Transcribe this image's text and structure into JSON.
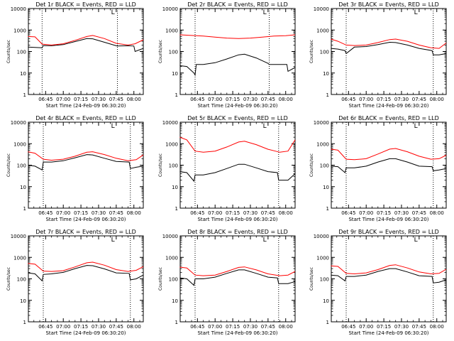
{
  "colors": {
    "background": "#ffffff",
    "events": "#000000",
    "lld": "#ff0000",
    "axis": "#000000"
  },
  "shared": {
    "ylabel": "Counts/sec",
    "xlabel": "Start Time (24-Feb-09 06:30:20)",
    "xticks": [
      "06:45",
      "07:00",
      "07:15",
      "07:30",
      "07:45",
      "08:00"
    ],
    "yticks": [
      "1",
      "10",
      "100",
      "1000",
      "10000"
    ],
    "marker": "L"
  },
  "chart_data": [
    {
      "type": "line",
      "title": "Det 1r BLACK = Events, RED = LLD",
      "xlabel": "Start Time (24-Feb-09 06:30:20)",
      "ylabel": "Counts/sec",
      "y_scale": "log",
      "ylim": [
        1,
        10000
      ],
      "xlim": [
        "06:30:20",
        "08:08"
      ],
      "dotted_vlines": [
        "06:42",
        "07:46"
      ],
      "series": [
        {
          "name": "Events",
          "color": "#000000",
          "x": [
            "06:30",
            "06:36",
            "06:42",
            "06:43",
            "06:50",
            "07:00",
            "07:10",
            "07:20",
            "07:25",
            "07:35",
            "07:45",
            "07:46",
            "07:55",
            "08:00",
            "08:01",
            "08:08"
          ],
          "y": [
            160,
            155,
            150,
            190,
            185,
            210,
            290,
            400,
            390,
            270,
            185,
            180,
            185,
            180,
            100,
            140
          ]
        },
        {
          "name": "LLD",
          "color": "#ff0000",
          "x": [
            "06:30",
            "06:36",
            "06:42",
            "06:50",
            "07:00",
            "07:10",
            "07:20",
            "07:25",
            "07:35",
            "07:45",
            "07:55",
            "08:01",
            "08:08"
          ],
          "y": [
            500,
            480,
            220,
            200,
            230,
            330,
            500,
            560,
            400,
            240,
            200,
            230,
            350
          ]
        }
      ]
    },
    {
      "type": "line",
      "title": "Det 2r BLACK = Events, RED = LLD",
      "xlabel": "Start Time (24-Feb-09 06:30:20)",
      "ylabel": "Counts/sec",
      "y_scale": "log",
      "ylim": [
        1,
        10000
      ],
      "xlim": [
        "06:30:20",
        "08:08"
      ],
      "dotted_vlines": [
        "06:43",
        "07:46"
      ],
      "series": [
        {
          "name": "Events",
          "color": "#000000",
          "x": [
            "06:30",
            "06:36",
            "06:42",
            "06:43",
            "06:44",
            "06:50",
            "07:00",
            "07:10",
            "07:20",
            "07:25",
            "07:35",
            "07:45",
            "07:46",
            "07:55",
            "08:01",
            "08:02",
            "08:08"
          ],
          "y": [
            22,
            20,
            10,
            8,
            25,
            25,
            30,
            45,
            70,
            75,
            50,
            28,
            25,
            25,
            25,
            12,
            18
          ]
        },
        {
          "name": "LLD",
          "color": "#ff0000",
          "x": [
            "06:30",
            "06:40",
            "06:50",
            "07:00",
            "07:10",
            "07:20",
            "07:30",
            "07:40",
            "07:50",
            "08:00",
            "08:08"
          ],
          "y": [
            600,
            560,
            520,
            470,
            420,
            400,
            420,
            470,
            520,
            540,
            600
          ]
        }
      ]
    },
    {
      "type": "line",
      "title": "Det 3r BLACK = Events, RED = LLD",
      "xlabel": "Start Time (24-Feb-09 06:30:20)",
      "ylabel": "Counts/sec",
      "y_scale": "log",
      "ylim": [
        1,
        10000
      ],
      "xlim": [
        "06:30:20",
        "08:08"
      ],
      "dotted_vlines": [
        "06:43",
        "07:57"
      ],
      "series": [
        {
          "name": "Events",
          "color": "#000000",
          "x": [
            "06:30",
            "06:36",
            "06:42",
            "06:43",
            "06:50",
            "07:00",
            "07:10",
            "07:20",
            "07:25",
            "07:35",
            "07:45",
            "07:56",
            "07:57",
            "08:02",
            "08:08"
          ],
          "y": [
            140,
            130,
            110,
            80,
            160,
            170,
            210,
            270,
            260,
            200,
            140,
            110,
            70,
            70,
            80
          ]
        },
        {
          "name": "LLD",
          "color": "#ff0000",
          "x": [
            "06:30",
            "06:36",
            "06:43",
            "06:50",
            "07:00",
            "07:10",
            "07:20",
            "07:25",
            "07:35",
            "07:45",
            "07:55",
            "08:02",
            "08:08"
          ],
          "y": [
            380,
            300,
            200,
            190,
            200,
            260,
            360,
            380,
            300,
            200,
            150,
            140,
            250
          ]
        }
      ]
    },
    {
      "type": "line",
      "title": "Det 4r BLACK = Events, RED = LLD",
      "xlabel": "Start Time (24-Feb-09 06:30:20)",
      "ylabel": "Counts/sec",
      "y_scale": "log",
      "ylim": [
        1,
        10000
      ],
      "xlim": [
        "06:30:20",
        "08:08"
      ],
      "dotted_vlines": [
        "06:43",
        "07:57"
      ],
      "series": [
        {
          "name": "Events",
          "color": "#000000",
          "x": [
            "06:30",
            "06:36",
            "06:42",
            "06:43",
            "06:50",
            "07:00",
            "07:10",
            "07:20",
            "07:25",
            "07:35",
            "07:45",
            "07:56",
            "07:57",
            "08:02",
            "08:08"
          ],
          "y": [
            100,
            90,
            60,
            140,
            140,
            160,
            220,
            310,
            300,
            210,
            150,
            140,
            70,
            80,
            90
          ]
        },
        {
          "name": "LLD",
          "color": "#ff0000",
          "x": [
            "06:30",
            "06:36",
            "06:43",
            "06:50",
            "07:00",
            "07:10",
            "07:20",
            "07:25",
            "07:35",
            "07:45",
            "07:55",
            "08:02",
            "08:08"
          ],
          "y": [
            420,
            360,
            190,
            170,
            190,
            260,
            400,
            420,
            310,
            210,
            160,
            180,
            300
          ]
        }
      ]
    },
    {
      "type": "line",
      "title": "Det 5r BLACK = Events, RED = LLD",
      "xlabel": "Start Time (24-Feb-09 06:30:20)",
      "ylabel": "Counts/sec",
      "y_scale": "log",
      "ylim": [
        1,
        10000
      ],
      "xlim": [
        "06:30:20",
        "08:08"
      ],
      "dotted_vlines": [
        "06:43",
        "07:54"
      ],
      "series": [
        {
          "name": "Events",
          "color": "#000000",
          "x": [
            "06:30",
            "06:36",
            "06:42",
            "06:43",
            "06:50",
            "07:00",
            "07:10",
            "07:20",
            "07:25",
            "07:35",
            "07:45",
            "07:53",
            "07:54",
            "08:02",
            "08:08"
          ],
          "y": [
            50,
            45,
            18,
            35,
            35,
            45,
            70,
            110,
            110,
            75,
            50,
            45,
            20,
            20,
            40
          ]
        },
        {
          "name": "LLD",
          "color": "#ff0000",
          "x": [
            "06:30",
            "06:36",
            "06:43",
            "06:50",
            "07:00",
            "07:10",
            "07:20",
            "07:25",
            "07:35",
            "07:45",
            "07:55",
            "08:02",
            "08:08"
          ],
          "y": [
            2000,
            1500,
            450,
            400,
            450,
            700,
            1200,
            1300,
            900,
            550,
            400,
            450,
            1500
          ]
        }
      ]
    },
    {
      "type": "line",
      "title": "Det 6r BLACK = Events, RED = LLD",
      "xlabel": "Start Time (24-Feb-09 06:30:20)",
      "ylabel": "Counts/sec",
      "y_scale": "log",
      "ylim": [
        1,
        10000
      ],
      "xlim": [
        "06:30:20",
        "08:08"
      ],
      "dotted_vlines": [
        "06:43",
        "07:57"
      ],
      "series": [
        {
          "name": "Events",
          "color": "#000000",
          "x": [
            "06:30",
            "06:36",
            "06:42",
            "06:43",
            "06:50",
            "07:00",
            "07:10",
            "07:20",
            "07:25",
            "07:35",
            "07:45",
            "07:56",
            "07:57",
            "08:02",
            "08:08"
          ],
          "y": [
            90,
            85,
            45,
            75,
            75,
            90,
            140,
            200,
            200,
            140,
            90,
            85,
            55,
            60,
            70
          ]
        },
        {
          "name": "LLD",
          "color": "#ff0000",
          "x": [
            "06:30",
            "06:36",
            "06:43",
            "06:50",
            "07:00",
            "07:10",
            "07:20",
            "07:25",
            "07:35",
            "07:45",
            "07:55",
            "08:02",
            "08:08"
          ],
          "y": [
            560,
            500,
            190,
            180,
            200,
            330,
            560,
            600,
            420,
            260,
            190,
            200,
            290
          ]
        }
      ]
    },
    {
      "type": "line",
      "title": "Det 7r BLACK = Events, RED = LLD",
      "xlabel": "Start Time (24-Feb-09 06:30:20)",
      "ylabel": "Counts/sec",
      "y_scale": "log",
      "ylim": [
        1,
        10000
      ],
      "xlim": [
        "06:30:20",
        "08:08"
      ],
      "dotted_vlines": [
        "06:43",
        "07:57"
      ],
      "series": [
        {
          "name": "Events",
          "color": "#000000",
          "x": [
            "06:30",
            "06:36",
            "06:42",
            "06:43",
            "06:50",
            "07:00",
            "07:10",
            "07:20",
            "07:25",
            "07:35",
            "07:45",
            "07:56",
            "07:57",
            "08:02",
            "08:08"
          ],
          "y": [
            190,
            170,
            80,
            160,
            170,
            200,
            300,
            420,
            410,
            290,
            190,
            180,
            90,
            100,
            150
          ]
        },
        {
          "name": "LLD",
          "color": "#ff0000",
          "x": [
            "06:30",
            "06:36",
            "06:43",
            "06:50",
            "07:00",
            "07:10",
            "07:20",
            "07:25",
            "07:35",
            "07:45",
            "07:55",
            "08:02",
            "08:08"
          ],
          "y": [
            520,
            480,
            230,
            220,
            240,
            360,
            560,
            600,
            430,
            270,
            220,
            250,
            370
          ]
        }
      ]
    },
    {
      "type": "line",
      "title": "Det 8r BLACK = Events, RED = LLD",
      "xlabel": "Start Time (24-Feb-09 06:30:20)",
      "ylabel": "Counts/sec",
      "y_scale": "log",
      "ylim": [
        1,
        10000
      ],
      "xlim": [
        "06:30:20",
        "08:08"
      ],
      "dotted_vlines": [
        "06:43",
        "07:54"
      ],
      "series": [
        {
          "name": "Events",
          "color": "#000000",
          "x": [
            "06:30",
            "06:36",
            "06:42",
            "06:43",
            "06:50",
            "07:00",
            "07:10",
            "07:20",
            "07:25",
            "07:35",
            "07:45",
            "07:53",
            "07:54",
            "08:02",
            "08:08"
          ],
          "y": [
            110,
            100,
            50,
            100,
            100,
            120,
            180,
            260,
            260,
            180,
            120,
            110,
            60,
            60,
            75
          ]
        },
        {
          "name": "LLD",
          "color": "#ff0000",
          "x": [
            "06:30",
            "06:36",
            "06:43",
            "06:50",
            "07:00",
            "07:10",
            "07:20",
            "07:25",
            "07:35",
            "07:45",
            "07:55",
            "08:02",
            "08:08"
          ],
          "y": [
            350,
            320,
            150,
            140,
            150,
            220,
            340,
            360,
            260,
            170,
            140,
            150,
            220
          ]
        }
      ]
    },
    {
      "type": "line",
      "title": "Det 9r BLACK = Events, RED = LLD",
      "xlabel": "Start Time (24-Feb-09 06:30:20)",
      "ylabel": "Counts/sec",
      "y_scale": "log",
      "ylim": [
        1,
        10000
      ],
      "xlim": [
        "06:30:20",
        "08:08"
      ],
      "dotted_vlines": [
        "06:43",
        "07:57"
      ],
      "series": [
        {
          "name": "Events",
          "color": "#000000",
          "x": [
            "06:30",
            "06:36",
            "06:42",
            "06:43",
            "06:50",
            "07:00",
            "07:10",
            "07:20",
            "07:25",
            "07:35",
            "07:45",
            "07:56",
            "07:57",
            "08:02",
            "08:08"
          ],
          "y": [
            150,
            140,
            80,
            130,
            130,
            150,
            220,
            300,
            300,
            210,
            140,
            130,
            65,
            70,
            90
          ]
        },
        {
          "name": "LLD",
          "color": "#ff0000",
          "x": [
            "06:30",
            "06:36",
            "06:43",
            "06:50",
            "07:00",
            "07:10",
            "07:20",
            "07:25",
            "07:35",
            "07:45",
            "07:55",
            "08:02",
            "08:08"
          ],
          "y": [
            400,
            380,
            180,
            170,
            190,
            270,
            420,
            450,
            320,
            210,
            170,
            180,
            280
          ]
        }
      ]
    }
  ]
}
